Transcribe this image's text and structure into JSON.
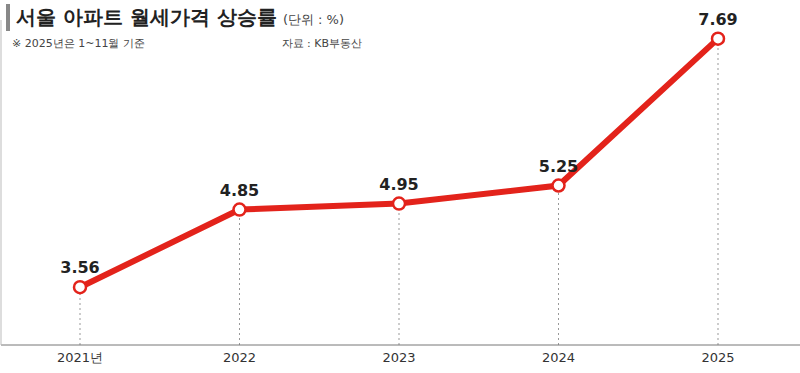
{
  "chart_data": {
    "type": "line",
    "title": "서울 아파트 월세가격 상승률",
    "unit": "(단위 : %)",
    "note": "※ 2025년은 1~11월 기준",
    "source": "자료 : KB부동산",
    "categories": [
      "2021년",
      "2022",
      "2023",
      "2024",
      "2025"
    ],
    "values": [
      3.56,
      4.85,
      4.95,
      5.25,
      7.69
    ],
    "color": "#e3231b",
    "marker": "circle",
    "ylim": [
      2.6,
      8.0
    ],
    "grid": false,
    "data_labels": true,
    "tick_labels": "x"
  }
}
